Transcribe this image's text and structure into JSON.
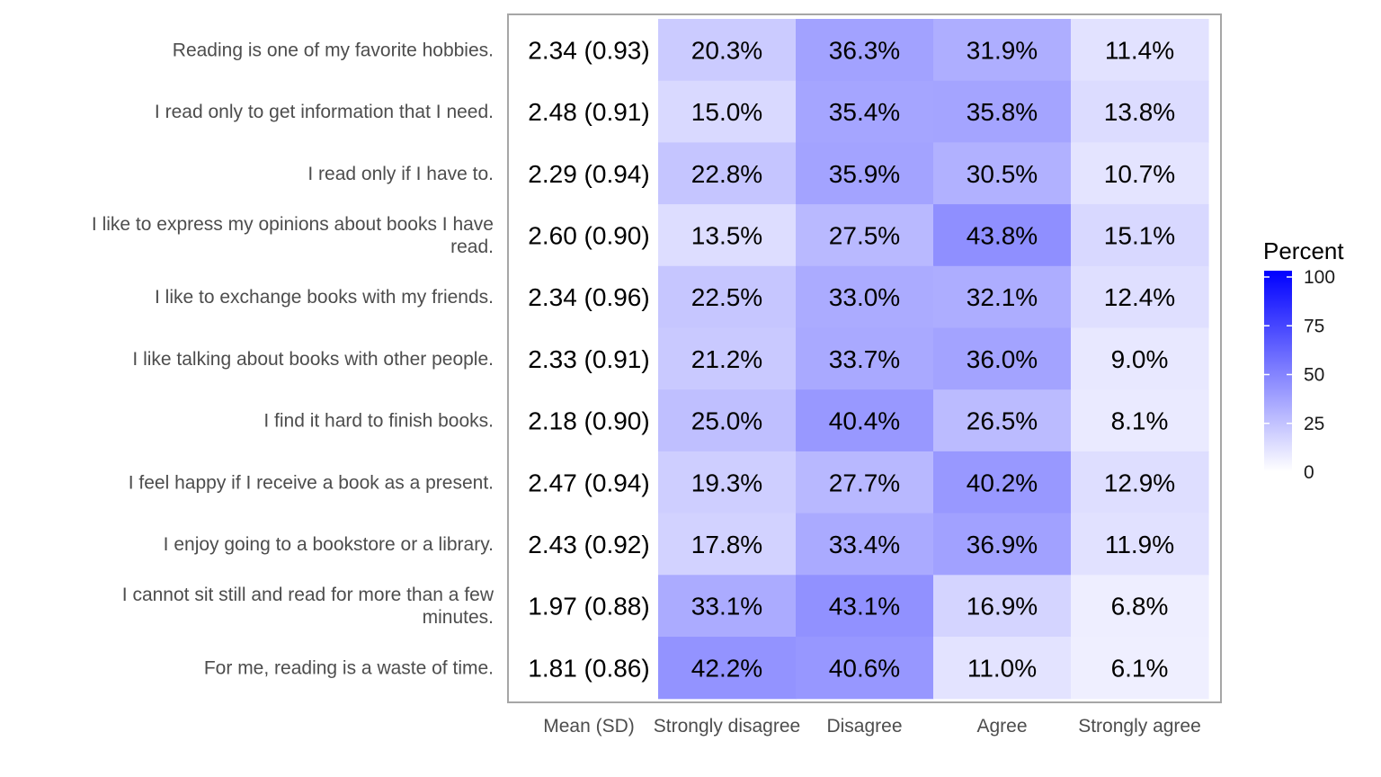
{
  "chart_data": {
    "type": "heatmap",
    "title": "",
    "xlabel": "",
    "ylabel": "",
    "mean_column_label": "Mean (SD)",
    "columns": [
      "Strongly disagree",
      "Disagree",
      "Agree",
      "Strongly agree"
    ],
    "rows": [
      {
        "label": "Reading is one of my favorite hobbies.",
        "mean_sd": "2.34 (0.93)",
        "values": [
          20.3,
          36.3,
          31.9,
          11.4
        ],
        "value_labels": [
          "20.3%",
          "36.3%",
          "31.9%",
          "11.4%"
        ]
      },
      {
        "label": "I read only to get information that I need.",
        "mean_sd": "2.48 (0.91)",
        "values": [
          15.0,
          35.4,
          35.8,
          13.8
        ],
        "value_labels": [
          "15.0%",
          "35.4%",
          "35.8%",
          "13.8%"
        ]
      },
      {
        "label": "I read only if I have to.",
        "mean_sd": "2.29 (0.94)",
        "values": [
          22.8,
          35.9,
          30.5,
          10.7
        ],
        "value_labels": [
          "22.8%",
          "35.9%",
          "30.5%",
          "10.7%"
        ]
      },
      {
        "label": "I like to express my opinions about books I have read.",
        "label_lines": [
          "I like to express my opinions about books I have",
          "read."
        ],
        "mean_sd": "2.60 (0.90)",
        "values": [
          13.5,
          27.5,
          43.8,
          15.1
        ],
        "value_labels": [
          "13.5%",
          "27.5%",
          "43.8%",
          "15.1%"
        ]
      },
      {
        "label": "I like to exchange books with my friends.",
        "mean_sd": "2.34 (0.96)",
        "values": [
          22.5,
          33.0,
          32.1,
          12.4
        ],
        "value_labels": [
          "22.5%",
          "33.0%",
          "32.1%",
          "12.4%"
        ]
      },
      {
        "label": "I like talking about books with other people.",
        "mean_sd": "2.33 (0.91)",
        "values": [
          21.2,
          33.7,
          36.0,
          9.0
        ],
        "value_labels": [
          "21.2%",
          "33.7%",
          "36.0%",
          "9.0%"
        ]
      },
      {
        "label": "I find it hard to finish books.",
        "mean_sd": "2.18 (0.90)",
        "values": [
          25.0,
          40.4,
          26.5,
          8.1
        ],
        "value_labels": [
          "25.0%",
          "40.4%",
          "26.5%",
          "8.1%"
        ]
      },
      {
        "label": "I feel happy if I receive a book as a present.",
        "mean_sd": "2.47 (0.94)",
        "values": [
          19.3,
          27.7,
          40.2,
          12.9
        ],
        "value_labels": [
          "19.3%",
          "27.7%",
          "40.2%",
          "12.9%"
        ]
      },
      {
        "label": "I enjoy going to a bookstore or a library.",
        "mean_sd": "2.43 (0.92)",
        "values": [
          17.8,
          33.4,
          36.9,
          11.9
        ],
        "value_labels": [
          "17.8%",
          "33.4%",
          "36.9%",
          "11.9%"
        ]
      },
      {
        "label": "I cannot sit still and read for more than a few minutes.",
        "label_lines": [
          "I cannot sit still and read for more than a few",
          "minutes."
        ],
        "mean_sd": "1.97 (0.88)",
        "values": [
          33.1,
          43.1,
          16.9,
          6.8
        ],
        "value_labels": [
          "33.1%",
          "43.1%",
          "16.9%",
          "6.8%"
        ]
      },
      {
        "label": "For me, reading is a waste of time.",
        "mean_sd": "1.81 (0.86)",
        "values": [
          42.2,
          40.6,
          11.0,
          6.1
        ],
        "value_labels": [
          "42.2%",
          "40.6%",
          "11.0%",
          "6.1%"
        ]
      }
    ],
    "legend": {
      "title": "Percent",
      "position": "right",
      "range": [
        0,
        100
      ],
      "ticks": [
        0,
        25,
        50,
        75,
        100
      ],
      "color_low": "#ffffff",
      "color_high": "#0000ff"
    },
    "grid": false
  }
}
